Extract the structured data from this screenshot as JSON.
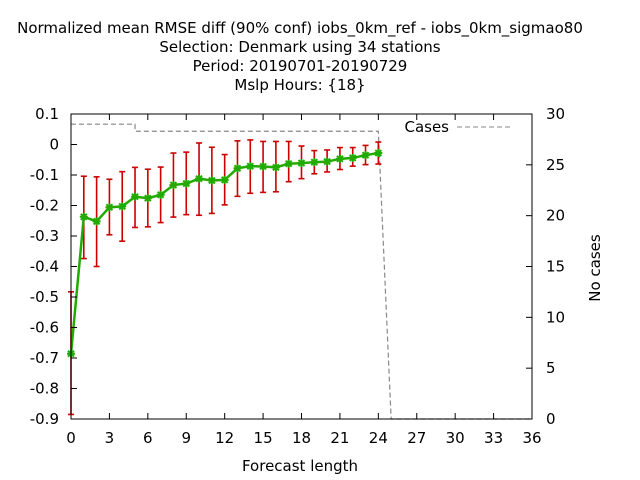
{
  "chart_data": {
    "type": "line",
    "title_lines": [
      "Normalized mean RMSE diff (90% conf) iobs_0km_ref - iobs_0km_sigmao80",
      "Selection: Denmark using    34 stations",
      "Period: 20190701-20190729",
      "Mslp   Hours: {18}"
    ],
    "xlabel": "Forecast length",
    "ylabel": "",
    "y2label": "No cases",
    "xlim": [
      0,
      36
    ],
    "ylim": [
      -0.9,
      0.1
    ],
    "y2lim": [
      0,
      30
    ],
    "x_ticks": [
      "0",
      "3",
      "6",
      "9",
      "12",
      "15",
      "18",
      "21",
      "24",
      "27",
      "30",
      "33",
      "36"
    ],
    "y_ticks": [
      "0.1",
      "0",
      "-0.1",
      "-0.2",
      "-0.3",
      "-0.4",
      "-0.5",
      "-0.6",
      "-0.7",
      "-0.8",
      "-0.9"
    ],
    "y2_ticks": [
      "30",
      "25",
      "20",
      "15",
      "10",
      "5",
      "0"
    ],
    "legend": {
      "label": "Cases",
      "position": "top-right"
    },
    "colors": {
      "series": "#22aa00",
      "marker": "#22aa00",
      "errorbar": "#cc0000",
      "cases": "#888888",
      "frame": "#000000"
    },
    "series": [
      {
        "x": [
          0,
          1,
          2,
          3,
          4,
          5,
          6,
          7,
          8,
          9,
          10,
          11,
          12,
          13,
          14,
          15,
          16,
          17,
          18,
          19,
          20,
          21,
          22,
          23,
          24
        ],
        "y": [
          -0.686,
          -0.237,
          -0.252,
          -0.206,
          -0.203,
          -0.171,
          -0.176,
          -0.165,
          -0.133,
          -0.128,
          -0.112,
          -0.118,
          -0.116,
          -0.078,
          -0.071,
          -0.072,
          -0.075,
          -0.063,
          -0.061,
          -0.058,
          -0.056,
          -0.047,
          -0.044,
          -0.035,
          -0.028
        ],
        "low": [
          -0.885,
          -0.374,
          -0.4,
          -0.296,
          -0.317,
          -0.272,
          -0.27,
          -0.256,
          -0.238,
          -0.23,
          -0.232,
          -0.226,
          -0.198,
          -0.17,
          -0.16,
          -0.157,
          -0.155,
          -0.122,
          -0.112,
          -0.096,
          -0.09,
          -0.082,
          -0.071,
          -0.066,
          -0.064
        ],
        "high": [
          -0.483,
          -0.104,
          -0.106,
          -0.114,
          -0.089,
          -0.075,
          -0.081,
          -0.074,
          -0.028,
          -0.025,
          0.005,
          -0.009,
          -0.033,
          0.012,
          0.015,
          0.01,
          0.01,
          0.01,
          -0.005,
          -0.02,
          -0.018,
          -0.01,
          -0.01,
          -0.003,
          0.008
        ]
      }
    ],
    "cases": {
      "x": [
        0,
        1,
        2,
        3,
        4,
        5,
        5,
        6,
        7,
        8,
        9,
        10,
        11,
        12,
        13,
        14,
        15,
        16,
        17,
        18,
        19,
        20,
        21,
        22,
        23,
        24,
        24,
        25,
        26,
        27,
        28,
        29,
        30,
        31,
        32,
        33,
        34,
        35,
        36
      ],
      "y": [
        29,
        29,
        29,
        29,
        29,
        29,
        28.3,
        28.3,
        28.3,
        28.3,
        28.3,
        28.3,
        28.3,
        28.3,
        28.3,
        28.3,
        28.3,
        28.3,
        28.3,
        28.3,
        28.3,
        28.3,
        28.3,
        28.3,
        28.3,
        28.3,
        28.3,
        0,
        0,
        0,
        0,
        0,
        0,
        0,
        0,
        0,
        0,
        0,
        0
      ]
    }
  }
}
